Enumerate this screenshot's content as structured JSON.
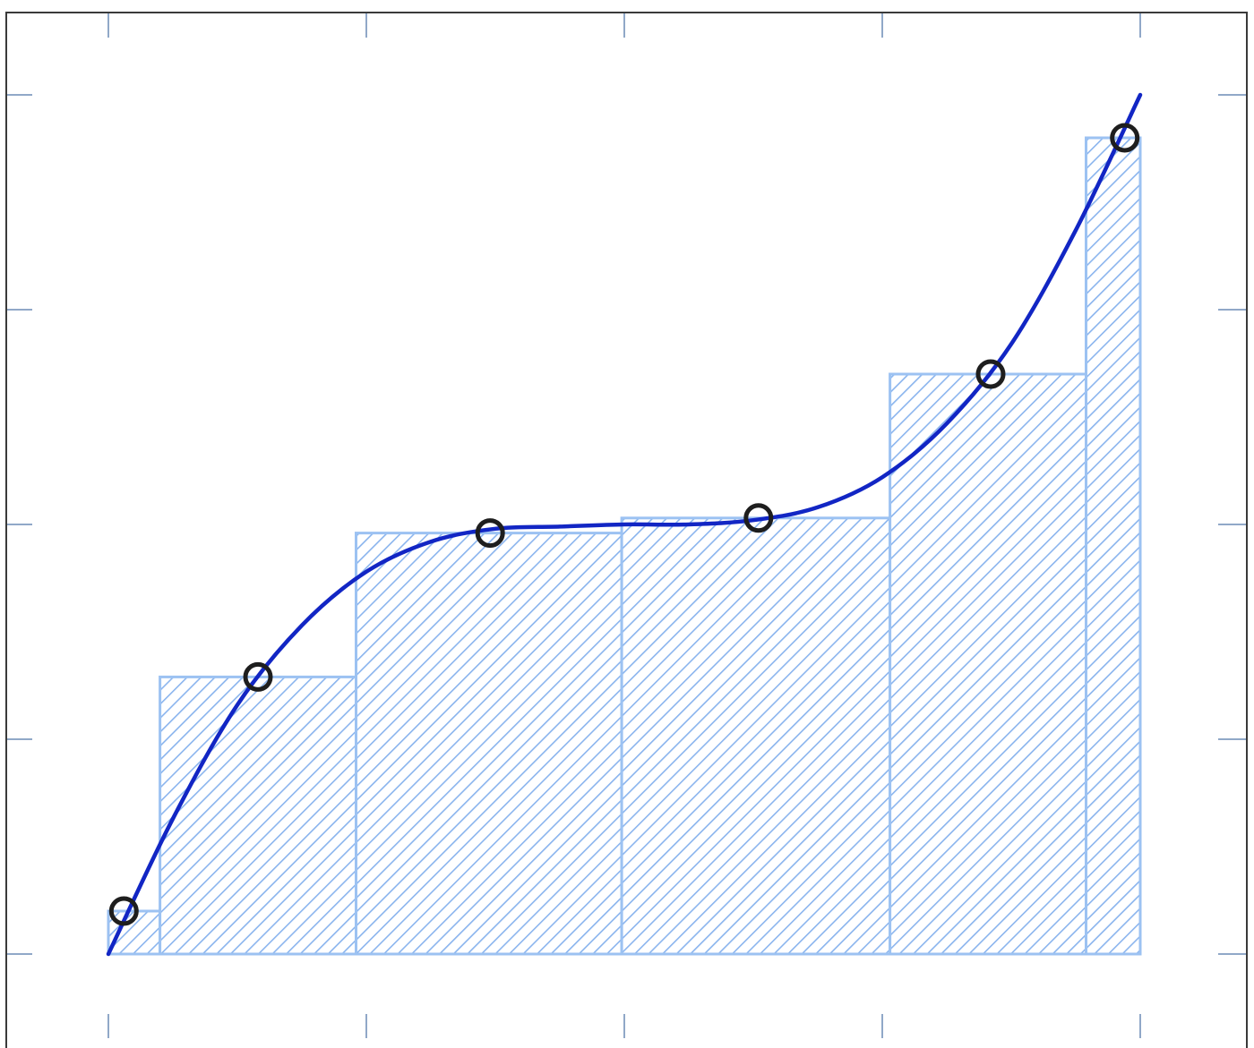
{
  "chart_data": {
    "type": "bar",
    "subtype": "riemann-sum-with-curve",
    "title": "",
    "xlabel": "",
    "ylabel": "",
    "xlim": [
      0,
      4
    ],
    "ylim": [
      -0.4,
      4
    ],
    "x_ticks": [
      0,
      1,
      2,
      3,
      4
    ],
    "y_ticks": [
      0,
      1,
      2,
      3,
      4
    ],
    "grid": false,
    "legend": "none",
    "colors": {
      "bar_fill": "#ffffff",
      "bar_hatch": "#8ab4ee",
      "bar_edge": "#9cc2f2",
      "curve": "#1226c4",
      "markers": "#1e1e1e",
      "axes": "#3a3a3a",
      "ticks": "#90a8c8"
    },
    "bars": [
      {
        "x_start": 0.0,
        "x_end": 0.2,
        "height": 0.2
      },
      {
        "x_start": 0.2,
        "x_end": 0.96,
        "height": 1.29
      },
      {
        "x_start": 0.96,
        "x_end": 1.99,
        "height": 1.96
      },
      {
        "x_start": 1.99,
        "x_end": 3.03,
        "height": 2.03
      },
      {
        "x_start": 3.03,
        "x_end": 3.79,
        "height": 2.7
      },
      {
        "x_start": 3.79,
        "x_end": 4.0,
        "height": 3.8
      }
    ],
    "curve": {
      "name": "",
      "x": [
        0.0,
        0.25,
        0.5,
        0.75,
        1.0,
        1.25,
        1.5,
        1.75,
        2.0,
        2.25,
        2.5,
        2.75,
        3.0,
        3.25,
        3.5,
        3.75,
        4.0
      ],
      "y": [
        0.0,
        0.63,
        1.16,
        1.53,
        1.78,
        1.92,
        1.98,
        1.99,
        2.0,
        2.0,
        2.02,
        2.08,
        2.22,
        2.47,
        2.84,
        3.37,
        4.0
      ]
    },
    "markers": {
      "x": [
        0.06,
        0.58,
        1.48,
        2.52,
        3.42,
        3.94
      ],
      "y": [
        0.2,
        1.29,
        1.96,
        2.03,
        2.7,
        3.8
      ]
    }
  }
}
